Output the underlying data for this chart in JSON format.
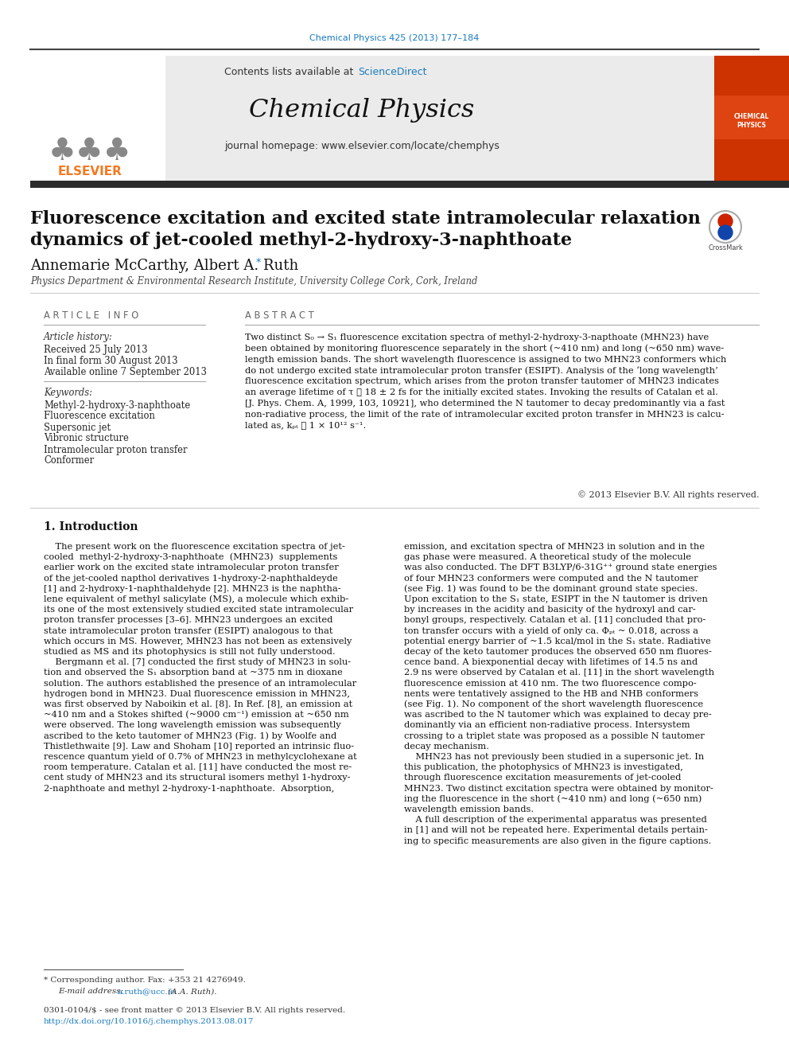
{
  "journal_ref": "Chemical Physics 425 (2013) 177–184",
  "contents_text": "Contents lists available at",
  "sciencedirect": "ScienceDirect",
  "journal_name": "Chemical Physics",
  "homepage_text": "journal homepage: www.elsevier.com/locate/chemphys",
  "title_line1": "Fluorescence excitation and excited state intramolecular relaxation",
  "title_line2": "dynamics of jet-cooled methyl-2-hydroxy-3-naphthoate",
  "authors": "Annemarie McCarthy, Albert A. Ruth",
  "affiliation": "Physics Department & Environmental Research Institute, University College Cork, Cork, Ireland",
  "article_info_header": "A R T I C L E   I N F O",
  "article_history_label": "Article history:",
  "received": "Received 25 July 2013",
  "in_final": "In final form 30 August 2013",
  "available": "Available online 7 September 2013",
  "keywords_label": "Keywords:",
  "keywords": [
    "Methyl-2-hydroxy-3-naphthoate",
    "Fluorescence excitation",
    "Supersonic jet",
    "Vibronic structure",
    "Intramolecular proton transfer",
    "Conformer"
  ],
  "abstract_header": "A B S T R A C T",
  "abstract_lines": [
    "Two distinct S₀ → S₁ fluorescence excitation spectra of methyl-2-hydroxy-3-napthoate (MHN23) have",
    "been obtained by monitoring fluorescence separately in the short (~410 nm) and long (~650 nm) wave-",
    "length emission bands. The short wavelength fluorescence is assigned to two MHN23 conformers which",
    "do not undergo excited state intramolecular proton transfer (ESIPT). Analysis of the ‘long wavelength’",
    "fluorescence excitation spectrum, which arises from the proton transfer tautomer of MHN23 indicates",
    "an average lifetime of τ ⩾ 18 ± 2 fs for the initially excited states. Invoking the results of Catalan et al.",
    "[J. Phys. Chem. A, 1999, 103, 10921], who determined the N tautomer to decay predominantly via a fast",
    "non-radiative process, the limit of the rate of intramolecular excited proton transfer in MHN23 is calcu-",
    "lated as, kₚₜ ⩽ 1 × 10¹² s⁻¹."
  ],
  "copyright_text": "© 2013 Elsevier B.V. All rights reserved.",
  "intro_header": "1. Introduction",
  "intro_col1_lines": [
    "    The present work on the fluorescence excitation spectra of jet-",
    "cooled  methyl-2-hydroxy-3-naphthoate  (MHN23)  supplements",
    "earlier work on the excited state intramolecular proton transfer",
    "of the jet-cooled napthol derivatives 1-hydroxy-2-naphthaldeyde",
    "[1] and 2-hydroxy-1-naphthaldehyde [2]. MHN23 is the naphtha-",
    "lene equivalent of methyl salicylate (MS), a molecule which exhib-",
    "its one of the most extensively studied excited state intramolecular",
    "proton transfer processes [3–6]. MHN23 undergoes an excited",
    "state intramolecular proton transfer (ESIPT) analogous to that",
    "which occurs in MS. However, MHN23 has not been as extensively",
    "studied as MS and its photophysics is still not fully understood.",
    "    Bergmann et al. [7] conducted the first study of MHN23 in solu-",
    "tion and observed the S₁ absorption band at ~375 nm in dioxane",
    "solution. The authors established the presence of an intramolecular",
    "hydrogen bond in MHN23. Dual fluorescence emission in MHN23,",
    "was first observed by Naboikin et al. [8]. In Ref. [8], an emission at",
    "~410 nm and a Stokes shifted (~9000 cm⁻¹) emission at ~650 nm",
    "were observed. The long wavelength emission was subsequently",
    "ascribed to the keto tautomer of MHN23 (Fig. 1) by Woolfe and",
    "Thistlethwaite [9]. Law and Shoham [10] reported an intrinsic fluo-",
    "rescence quantum yield of 0.7% of MHN23 in methylcyclohexane at",
    "room temperature. Catalan et al. [11] have conducted the most re-",
    "cent study of MHN23 and its structural isomers methyl 1-hydroxy-",
    "2-naphthoate and methyl 2-hydroxy-1-naphthoate.  Absorption,"
  ],
  "intro_col2_lines": [
    "emission, and excitation spectra of MHN23 in solution and in the",
    "gas phase were measured. A theoretical study of the molecule",
    "was also conducted. The DFT B3LYP/6-31G⁺⁺ ground state energies",
    "of four MHN23 conformers were computed and the N tautomer",
    "(see Fig. 1) was found to be the dominant ground state species.",
    "Upon excitation to the S₁ state, ESIPT in the N tautomer is driven",
    "by increases in the acidity and basicity of the hydroxyl and car-",
    "bonyl groups, respectively. Catalan et al. [11] concluded that pro-",
    "ton transfer occurs with a yield of only ca. Φₚₜ ~ 0.018, across a",
    "potential energy barrier of ~1.5 kcal/mol in the S₁ state. Radiative",
    "decay of the keto tautomer produces the observed 650 nm fluores-",
    "cence band. A biexponential decay with lifetimes of 14.5 ns and",
    "2.9 ns were observed by Catalan et al. [11] in the short wavelength",
    "fluorescence emission at 410 nm. The two fluorescence compo-",
    "nents were tentatively assigned to the HB and NHB conformers",
    "(see Fig. 1). No component of the short wavelength fluorescence",
    "was ascribed to the N tautomer which was explained to decay pre-",
    "dominantly via an efficient non-radiative process. Intersystem",
    "crossing to a triplet state was proposed as a possible N tautomer",
    "decay mechanism.",
    "    MHN23 has not previously been studied in a supersonic jet. In",
    "this publication, the photophysics of MHN23 is investigated,",
    "through fluorescence excitation measurements of jet-cooled",
    "MHN23. Two distinct excitation spectra were obtained by monitor-",
    "ing the fluorescence in the short (~410 nm) and long (~650 nm)",
    "wavelength emission bands.",
    "    A full description of the experimental apparatus was presented",
    "in [1] and will not be repeated here. Experimental details pertain-",
    "ing to specific measurements are also given in the figure captions."
  ],
  "footnote1": "* Corresponding author. Fax: +353 21 4276949.",
  "footnote2_pre": "E-mail address: ",
  "footnote2_link": "a.ruth@ucc.ie",
  "footnote2_post": " (A.A. Ruth).",
  "footnote3": "0301-0104/$ - see front matter © 2013 Elsevier B.V. All rights reserved.",
  "footnote4": "http://dx.doi.org/10.1016/j.chemphys.2013.08.017",
  "bg_color": "#ffffff",
  "text_color": "#000000",
  "blue_color": "#1a7abf",
  "orange_color": "#f47920",
  "dark_bar_color": "#2b2b2b",
  "link_color": "#2979a8"
}
